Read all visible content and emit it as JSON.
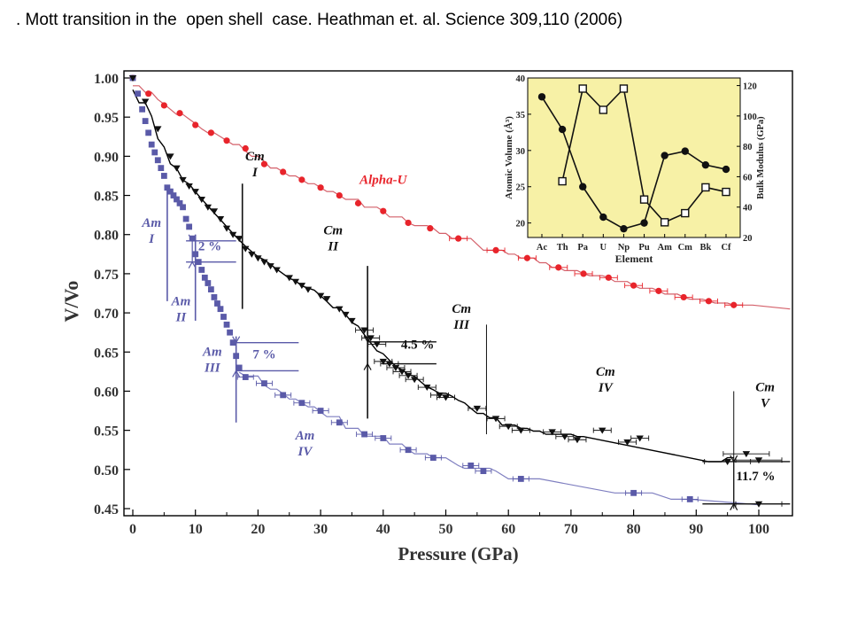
{
  "slide": {
    "title": ". Mott transition in the  open shell  case. Heathman et. al. Science 309,110 (2006)"
  },
  "chart_data": [
    {
      "type": "scatter",
      "title": "",
      "xlabel": "Pressure (GPa)",
      "ylabel": "V/Vo",
      "xlim": [
        0,
        100
      ],
      "ylim": [
        0.45,
        1.0
      ],
      "xticks": [
        "0",
        "10",
        "20",
        "30",
        "40",
        "50",
        "60",
        "70",
        "80",
        "90",
        "100"
      ],
      "yticks": [
        "0.45",
        "0.50",
        "0.55",
        "0.60",
        "0.65",
        "0.70",
        "0.75",
        "0.80",
        "0.85",
        "0.90",
        "0.95",
        "1.00"
      ],
      "grid": false,
      "colors": {
        "alpha_u": "#e8242b",
        "am": "#5a5aa8",
        "cm": "#111111",
        "fit_red": "#d4606a",
        "fit_blue": "#7f7fc0"
      },
      "series": [
        {
          "name": "Alpha-U",
          "marker": "circle",
          "points": [
            [
              0,
              1.0
            ],
            [
              2.5,
              0.98
            ],
            [
              5,
              0.965
            ],
            [
              7.5,
              0.955
            ],
            [
              10,
              0.94
            ],
            [
              12.5,
              0.93
            ],
            [
              15,
              0.92
            ],
            [
              18,
              0.91
            ],
            [
              21,
              0.89
            ],
            [
              24,
              0.88
            ],
            [
              27,
              0.87
            ],
            [
              30,
              0.86
            ],
            [
              33,
              0.85
            ],
            [
              36,
              0.84
            ],
            [
              40,
              0.83
            ],
            [
              44,
              0.815
            ],
            [
              47.5,
              0.808
            ],
            [
              52,
              0.795
            ],
            [
              58,
              0.78
            ],
            [
              63,
              0.77
            ],
            [
              68,
              0.758
            ],
            [
              72,
              0.75
            ],
            [
              76,
              0.745
            ],
            [
              80,
              0.735
            ],
            [
              84,
              0.728
            ],
            [
              88,
              0.72
            ],
            [
              92,
              0.715
            ],
            [
              96,
              0.71
            ]
          ]
        },
        {
          "name": "Am",
          "marker": "square",
          "points": [
            [
              0,
              1.0
            ],
            [
              0.8,
              0.98
            ],
            [
              1.5,
              0.96
            ],
            [
              2,
              0.945
            ],
            [
              2.5,
              0.93
            ],
            [
              3,
              0.915
            ],
            [
              3.5,
              0.905
            ],
            [
              4,
              0.895
            ],
            [
              4.5,
              0.885
            ],
            [
              5,
              0.875
            ],
            [
              5.5,
              0.86
            ],
            [
              6,
              0.855
            ],
            [
              6.5,
              0.85
            ],
            [
              7,
              0.845
            ],
            [
              7.5,
              0.84
            ],
            [
              8,
              0.835
            ],
            [
              8.5,
              0.82
            ],
            [
              9,
              0.81
            ],
            [
              9.5,
              0.795
            ],
            [
              10,
              0.775
            ],
            [
              10.5,
              0.765
            ],
            [
              11,
              0.755
            ],
            [
              11.5,
              0.745
            ],
            [
              12,
              0.738
            ],
            [
              12.5,
              0.73
            ],
            [
              13,
              0.72
            ],
            [
              13.5,
              0.712
            ],
            [
              14,
              0.705
            ],
            [
              14.5,
              0.695
            ],
            [
              15,
              0.685
            ],
            [
              15.5,
              0.675
            ],
            [
              16,
              0.662
            ],
            [
              16.5,
              0.645
            ],
            [
              17,
              0.63
            ],
            [
              18,
              0.618
            ],
            [
              21,
              0.61
            ],
            [
              24,
              0.595
            ],
            [
              27,
              0.585
            ],
            [
              30,
              0.575
            ],
            [
              33,
              0.56
            ],
            [
              37,
              0.545
            ],
            [
              40,
              0.54
            ],
            [
              44,
              0.525
            ],
            [
              48,
              0.515
            ],
            [
              54,
              0.505
            ],
            [
              56,
              0.498
            ],
            [
              62,
              0.488
            ],
            [
              80,
              0.47
            ],
            [
              89,
              0.462
            ]
          ]
        },
        {
          "name": "Cm",
          "marker": "triangle-down",
          "points": [
            [
              0,
              1.0
            ],
            [
              2,
              0.97
            ],
            [
              4,
              0.935
            ],
            [
              6,
              0.9
            ],
            [
              7,
              0.885
            ],
            [
              8,
              0.87
            ],
            [
              9,
              0.862
            ],
            [
              10,
              0.855
            ],
            [
              11,
              0.845
            ],
            [
              12,
              0.835
            ],
            [
              13,
              0.83
            ],
            [
              14,
              0.82
            ],
            [
              15,
              0.808
            ],
            [
              16,
              0.8
            ],
            [
              17,
              0.795
            ],
            [
              18,
              0.782
            ],
            [
              19,
              0.775
            ],
            [
              20,
              0.77
            ],
            [
              21,
              0.765
            ],
            [
              22,
              0.76
            ],
            [
              23,
              0.755
            ],
            [
              25,
              0.745
            ],
            [
              26,
              0.74
            ],
            [
              27,
              0.735
            ],
            [
              28,
              0.73
            ],
            [
              30,
              0.722
            ],
            [
              31,
              0.718
            ],
            [
              33,
              0.705
            ],
            [
              34,
              0.698
            ],
            [
              35,
              0.69
            ],
            [
              37,
              0.678
            ],
            [
              38,
              0.668
            ],
            [
              39,
              0.66
            ],
            [
              40,
              0.638
            ],
            [
              41,
              0.635
            ],
            [
              42,
              0.63
            ],
            [
              43,
              0.625
            ],
            [
              44,
              0.62
            ],
            [
              45,
              0.615
            ],
            [
              47,
              0.605
            ],
            [
              49,
              0.595
            ],
            [
              50,
              0.592
            ],
            [
              55,
              0.578
            ],
            [
              58,
              0.565
            ],
            [
              60,
              0.555
            ],
            [
              62,
              0.55
            ],
            [
              67,
              0.548
            ],
            [
              69,
              0.542
            ],
            [
              71,
              0.538
            ],
            [
              75,
              0.55
            ],
            [
              79,
              0.535
            ],
            [
              81,
              0.54
            ],
            [
              95,
              0.51
            ],
            [
              98,
              0.52
            ],
            [
              100,
              0.512
            ],
            [
              100,
              0.456
            ]
          ]
        }
      ],
      "annotations": {
        "phase_labels": [
          {
            "text": "Cm",
            "text2": "I",
            "x": 19.5,
            "y": 0.895,
            "color": "#111111"
          },
          {
            "text": "Cm",
            "text2": "II",
            "x": 32,
            "y": 0.8,
            "color": "#111111"
          },
          {
            "text": "Cm",
            "text2": "III",
            "x": 52.5,
            "y": 0.7,
            "color": "#111111"
          },
          {
            "text": "Cm",
            "text2": "IV",
            "x": 75.5,
            "y": 0.62,
            "color": "#111111"
          },
          {
            "text": "Cm",
            "text2": "V",
            "x": 101,
            "y": 0.6,
            "color": "#111111"
          },
          {
            "text": "Am",
            "text2": "I",
            "x": 3,
            "y": 0.81,
            "color": "#5a5aa8"
          },
          {
            "text": "Am",
            "text2": "II",
            "x": 7.7,
            "y": 0.71,
            "color": "#5a5aa8"
          },
          {
            "text": "Am",
            "text2": "III",
            "x": 12.7,
            "y": 0.645,
            "color": "#5a5aa8"
          },
          {
            "text": "Am",
            "text2": "IV",
            "x": 27.5,
            "y": 0.538,
            "color": "#5a5aa8"
          }
        ],
        "series_label": {
          "text": "Alpha-U",
          "x": 40,
          "y": 0.865,
          "color": "#e8242b"
        },
        "percent_labels": [
          {
            "text": "2 %",
            "x": 12.3,
            "y": 0.78,
            "color": "#5a5aa8"
          },
          {
            "text": "7 %",
            "x": 21,
            "y": 0.642,
            "color": "#5a5aa8"
          },
          {
            "text": "4.5 %",
            "x": 45.5,
            "y": 0.654,
            "color": "#111111"
          },
          {
            "text": "11.7 %",
            "x": 99.5,
            "y": 0.486,
            "color": "#111111"
          }
        ]
      }
    },
    {
      "type": "line",
      "title": "",
      "xlabel": "Element",
      "ylabel": "Atomic Volume (Å³)",
      "y2label": "Bulk Modulus (GPa)",
      "categories": [
        "Ac",
        "Th",
        "Pa",
        "U",
        "Np",
        "Pu",
        "Am",
        "Cm",
        "Bk",
        "Cf"
      ],
      "ylim": [
        18,
        40
      ],
      "y2lim": [
        20,
        125
      ],
      "yticks": [
        "20",
        "25",
        "30",
        "35",
        "40"
      ],
      "y2ticks": [
        "20",
        "40",
        "60",
        "80",
        "100",
        "120"
      ],
      "background": "#f7f1a6",
      "series": [
        {
          "name": "Atomic Volume",
          "axis": "left",
          "marker": "filled-circle",
          "values": [
            37.4,
            32.9,
            25.0,
            20.8,
            19.2,
            20.0,
            29.3,
            29.9,
            28.0,
            27.4
          ]
        },
        {
          "name": "Bulk Modulus",
          "axis": "right",
          "marker": "open-square",
          "values": [
            null,
            57,
            118,
            104,
            118,
            45,
            30,
            36,
            53,
            50
          ]
        }
      ]
    }
  ]
}
